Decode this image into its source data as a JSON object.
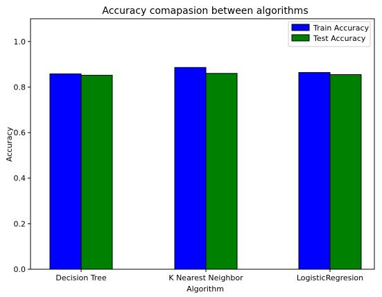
{
  "chart_data": {
    "type": "bar",
    "title": "Accuracy comapasion between algorithms",
    "xlabel": "Algorithm",
    "ylabel": "Accuracy",
    "categories": [
      "Decision Tree",
      "K Nearest Neighbor",
      "LogisticRegresion"
    ],
    "series": [
      {
        "name": "Train Accuracy",
        "color": "#0000ff",
        "values": [
          0.858,
          0.886,
          0.864
        ]
      },
      {
        "name": "Test Accuracy",
        "color": "#008000",
        "values": [
          0.852,
          0.86,
          0.855
        ]
      }
    ],
    "ylim": [
      0,
      1.1
    ],
    "yticks": [
      "0.0",
      "0.2",
      "0.4",
      "0.6",
      "0.8",
      "1.0"
    ],
    "grid": false,
    "legend_position": "top-right"
  }
}
